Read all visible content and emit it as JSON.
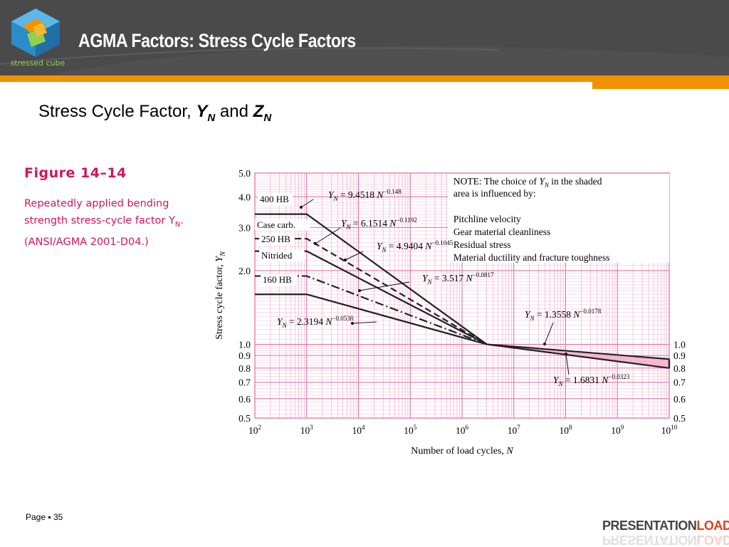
{
  "header": {
    "title": "AGMA Factors: Stress Cycle Factors",
    "logo_text": "stressed cube"
  },
  "subtitle": {
    "prefix": "Stress Cycle Factor, ",
    "sym1": "Y",
    "sub1": "N",
    "and": " and ",
    "sym2": "Z",
    "sub2": "N"
  },
  "figure": {
    "label": "Figure 14–14",
    "caption": "Repeatedly applied bending strength stress-cycle factor Y",
    "caption_sub": "N",
    "caption_end": ". (ANSI/AGMA 2001-D04.)"
  },
  "footer": {
    "page_label": "Page ▪ 35",
    "brand_main": "PRESENTATION",
    "brand_accent": "LOAD"
  },
  "colors": {
    "header_bg": "#4a4a4a",
    "accent_orange": "#f39200",
    "figure_magenta": "#d4145a",
    "grid_pink": "#f3a6c8",
    "shaded_band": "#f7b6d2"
  },
  "chart_data": {
    "type": "line",
    "xscale": "log",
    "yscale": "log",
    "xlim": [
      100,
      10000000000
    ],
    "ylim": [
      0.5,
      5.0
    ],
    "xlabel": "Number of load cycles, N",
    "ylabel": "Stress cycle factor, Y",
    "ylabel_sub": "N",
    "x_ticks": [
      {
        "value": 100,
        "base": "10",
        "exp": "2"
      },
      {
        "value": 1000,
        "base": "10",
        "exp": "3"
      },
      {
        "value": 10000,
        "base": "10",
        "exp": "4"
      },
      {
        "value": 100000,
        "base": "10",
        "exp": "5"
      },
      {
        "value": 1000000,
        "base": "10",
        "exp": "6"
      },
      {
        "value": 10000000,
        "base": "10",
        "exp": "7"
      },
      {
        "value": 100000000,
        "base": "10",
        "exp": "8"
      },
      {
        "value": 1000000000,
        "base": "10",
        "exp": "9"
      },
      {
        "value": 10000000000,
        "base": "10",
        "exp": "10"
      }
    ],
    "y_ticks_left": [
      {
        "value": 5.0,
        "label": "5.0"
      },
      {
        "value": 4.0,
        "label": "4.0"
      },
      {
        "value": 3.0,
        "label": "3.0"
      },
      {
        "value": 2.0,
        "label": "2.0"
      },
      {
        "value": 1.0,
        "label": "1.0"
      },
      {
        "value": 0.9,
        "label": "0.9"
      },
      {
        "value": 0.8,
        "label": "0.8"
      },
      {
        "value": 0.7,
        "label": "0.7"
      },
      {
        "value": 0.6,
        "label": "0.6"
      },
      {
        "value": 0.5,
        "label": "0.5"
      }
    ],
    "y_ticks_right": [
      {
        "value": 1.0,
        "label": "1.0"
      },
      {
        "value": 0.9,
        "label": "0.9"
      },
      {
        "value": 0.8,
        "label": "0.8"
      },
      {
        "value": 0.7,
        "label": "0.7"
      },
      {
        "value": 0.6,
        "label": "0.6"
      },
      {
        "value": 0.5,
        "label": "0.5"
      }
    ],
    "series": [
      {
        "name": "400 HB",
        "dash": "solid",
        "points": [
          [
            100,
            3.4
          ],
          [
            1000,
            3.4
          ],
          [
            3000000,
            1.0
          ]
        ]
      },
      {
        "name": "Case carb.",
        "dash": "dashed",
        "points": [
          [
            100,
            2.7
          ],
          [
            1000,
            2.7
          ],
          [
            3000000,
            1.0
          ]
        ]
      },
      {
        "name": "250 HB",
        "dash": "solid",
        "points": [
          [
            100,
            2.4
          ],
          [
            1000,
            2.4
          ],
          [
            3000000,
            1.0
          ]
        ]
      },
      {
        "name": "Nitrided",
        "dash": "dashdot",
        "points": [
          [
            100,
            1.9
          ],
          [
            1000,
            1.9
          ],
          [
            3000000,
            1.0
          ]
        ]
      },
      {
        "name": "160 HB",
        "dash": "solid",
        "points": [
          [
            100,
            1.6
          ],
          [
            1000,
            1.6
          ],
          [
            3000000,
            1.0
          ]
        ]
      },
      {
        "name": "",
        "dash": "solid",
        "points": [
          [
            3000000,
            1.0
          ],
          [
            10000000000,
            0.87
          ]
        ]
      },
      {
        "name": "",
        "dash": "solid",
        "points": [
          [
            3000000,
            1.0
          ],
          [
            10000000000,
            0.8
          ]
        ]
      }
    ],
    "shaded_region": {
      "upper": [
        [
          3000000,
          1.0
        ],
        [
          10000000000,
          0.87
        ]
      ],
      "lower": [
        [
          3000000,
          1.0
        ],
        [
          10000000000,
          0.8
        ]
      ]
    },
    "annotations": [
      {
        "coef": "9.4518",
        "exp": "−0.148"
      },
      {
        "coef": "6.1514",
        "exp": "−0.1192"
      },
      {
        "coef": "4.9404",
        "exp": "−0.1045"
      },
      {
        "coef": "3.517",
        "exp": "−0.0817"
      },
      {
        "coef": "2.3194",
        "exp": "−0.0538"
      },
      {
        "coef": "1.3558",
        "exp": "−0.0178"
      },
      {
        "coef": "1.6831",
        "exp": "−0.0323"
      }
    ],
    "note": {
      "line1_a": "NOTE:   The choice of ",
      "line1_sym": "Y",
      "line1_sub": "N",
      "line1_b": " in the shaded",
      "line2": "area is influenced by:",
      "items": [
        "Pitchline velocity",
        "Gear material cleanliness",
        "Residual stress",
        "Material ductility and fracture toughness"
      ]
    }
  }
}
